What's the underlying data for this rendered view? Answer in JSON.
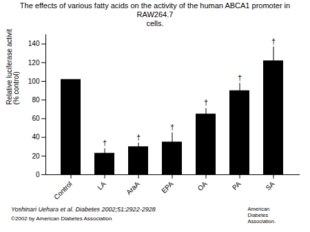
{
  "chart_data": {
    "type": "bar",
    "title": "The effects of various fatty acids on the activity of the human ABCA1 promoter in RAW264.7\ncells.",
    "ylabel": "Relative luciferase activity\n(% control)",
    "categories": [
      "Control",
      "LA",
      "AraA",
      "EPA",
      "OA",
      "PA",
      "SA"
    ],
    "values": [
      102,
      23,
      30,
      35,
      65,
      90,
      122
    ],
    "errors": [
      0,
      5,
      4,
      10,
      6,
      8,
      15
    ],
    "color": "#000000",
    "ylim": [
      0,
      150
    ],
    "yticks": [
      0,
      20,
      40,
      60,
      80,
      100,
      120,
      140
    ],
    "annotations": [
      {
        "category": "LA",
        "text": "†"
      },
      {
        "category": "AraA",
        "text": "†"
      },
      {
        "category": "EPA",
        "text": "†"
      },
      {
        "category": "OA",
        "text": "†"
      },
      {
        "category": "PA",
        "text": "†"
      },
      {
        "category": "SA",
        "text": "†"
      }
    ],
    "footnote": "Yoshinari Uehara et al. Diabetes 2002;51:2922-2928",
    "copyright": "©2002 by American Diabetes Association",
    "logo": "American\nDiabetes\nAssociation."
  }
}
